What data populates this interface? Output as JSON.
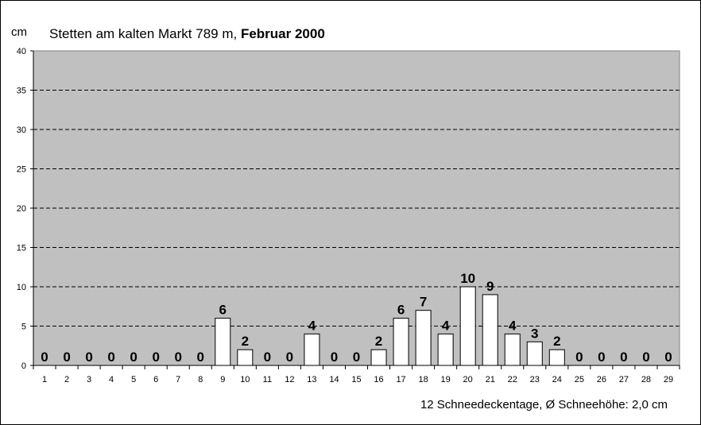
{
  "chart_data": {
    "type": "bar",
    "title_prefix": "Stetten am kalten Markt  789 m, ",
    "title_bold": "Februar 2000",
    "ylabel": "cm",
    "xlabel": "",
    "ylim": [
      0,
      40
    ],
    "yticks": [
      0,
      5,
      10,
      15,
      20,
      25,
      30,
      35,
      40
    ],
    "grid": "dashed-horizontal",
    "categories": [
      "1",
      "2",
      "3",
      "4",
      "5",
      "6",
      "7",
      "8",
      "9",
      "10",
      "11",
      "12",
      "13",
      "14",
      "15",
      "16",
      "17",
      "18",
      "19",
      "20",
      "21",
      "22",
      "23",
      "24",
      "25",
      "26",
      "27",
      "28",
      "29"
    ],
    "values": [
      0,
      0,
      0,
      0,
      0,
      0,
      0,
      0,
      6,
      2,
      0,
      0,
      4,
      0,
      0,
      2,
      6,
      7,
      4,
      10,
      9,
      4,
      3,
      2,
      0,
      0,
      0,
      0,
      0
    ],
    "footer": "12 Schneedeckentage,  Ø Schneehöhe:  2,0 cm",
    "colors": {
      "plot_background": "#c0c0c0",
      "bar_fill": "#ffffff",
      "bar_stroke": "#000000",
      "grid": "#000000"
    }
  }
}
